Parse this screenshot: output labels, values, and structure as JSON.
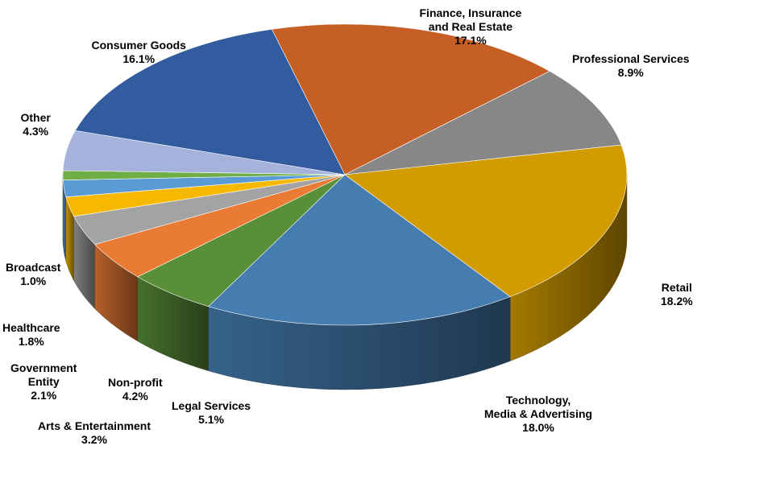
{
  "chart_data": {
    "type": "pie",
    "title": "",
    "slices": [
      {
        "label": [
          "Finance, Insurance",
          "and Real Estate"
        ],
        "display": "17.1%",
        "value": 17.1,
        "color": "#c55f26"
      },
      {
        "label": [
          "Professional Services"
        ],
        "display": "8.9%",
        "value": 8.9,
        "color": "#878787"
      },
      {
        "label": [
          "Retail"
        ],
        "display": "18.2%",
        "value": 18.2,
        "color": "#d29c00"
      },
      {
        "label": [
          "Technology,",
          "Media & Advertising"
        ],
        "display": "18.0%",
        "value": 18.0,
        "color": "#457db1"
      },
      {
        "label": [
          "Legal Services"
        ],
        "display": "5.1%",
        "value": 5.1,
        "color": "#5a8f3a"
      },
      {
        "label": [
          "Non-profit"
        ],
        "display": "4.2%",
        "value": 4.2,
        "color": "#e97b34"
      },
      {
        "label": [
          "Arts & Entertainment"
        ],
        "display": "3.2%",
        "value": 3.2,
        "color": "#a3a3a3"
      },
      {
        "label": [
          "Government",
          "Entity"
        ],
        "display": "2.1%",
        "value": 2.1,
        "color": "#f6b900"
      },
      {
        "label": [
          "Healthcare"
        ],
        "display": "1.8%",
        "value": 1.8,
        "color": "#5b9bd5"
      },
      {
        "label": [
          "Broadcast"
        ],
        "display": "1.0%",
        "value": 1.0,
        "color": "#6fae46"
      },
      {
        "label": [
          "Other"
        ],
        "display": "4.3%",
        "value": 4.3,
        "color": "#a4b2dc"
      },
      {
        "label": [
          "Consumer Goods"
        ],
        "display": "16.1%",
        "value": 16.1,
        "color": "#335b9f"
      }
    ]
  }
}
